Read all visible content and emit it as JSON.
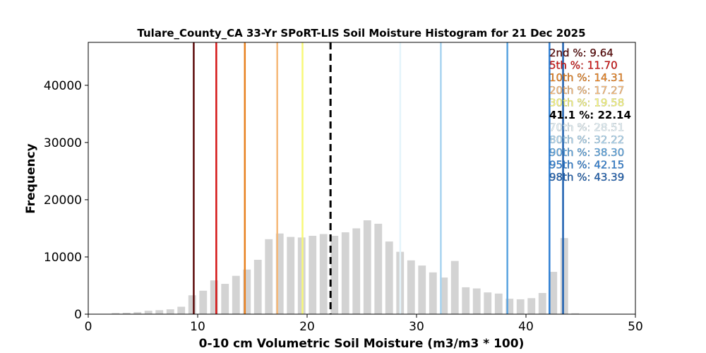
{
  "chart_data": {
    "type": "bar",
    "title": "Tulare_County_CA 33-Yr SPoRT-LIS Soil Moisture Histogram for 21 Dec 2025",
    "xlabel": "0-10 cm Volumetric Soil Moisture (m3/m3 * 100)",
    "ylabel": "Frequency",
    "xlim": [
      0,
      50
    ],
    "ylim": [
      0,
      47500
    ],
    "xticks": [
      "0",
      "10",
      "20",
      "30",
      "40",
      "50"
    ],
    "xtick_values": [
      0,
      10,
      20,
      30,
      40,
      50
    ],
    "yticks": [
      "0",
      "10000",
      "20000",
      "30000",
      "40000"
    ],
    "ytick_values": [
      0,
      10000,
      20000,
      30000,
      40000
    ],
    "grid": false,
    "bar_color": "#d3d3d3",
    "bars": {
      "x": [
        2.5,
        3.5,
        4.5,
        5.5,
        6.5,
        7.5,
        8.5,
        9.5,
        10.5,
        11.5,
        12.5,
        13.5,
        14.5,
        15.5,
        16.5,
        17.5,
        18.5,
        19.5,
        20.5,
        21.5,
        22.5,
        23.5,
        24.5,
        25.5,
        26.5,
        27.5,
        28.5,
        29.5,
        30.5,
        31.5,
        32.5,
        33.5,
        34.5,
        35.5,
        36.5,
        37.5,
        38.5,
        39.5,
        40.5,
        41.5,
        42.5,
        43.5,
        44.5
      ],
      "values": [
        200,
        250,
        350,
        600,
        700,
        850,
        1300,
        3300,
        4100,
        5900,
        5300,
        6700,
        7800,
        9500,
        13100,
        14100,
        13500,
        13400,
        13700,
        14000,
        13700,
        14300,
        15000,
        16400,
        15800,
        12700,
        10900,
        9400,
        8500,
        7300,
        6400,
        9300,
        4700,
        4500,
        3800,
        3600,
        2700,
        2600,
        2800,
        3700,
        7400,
        13300,
        150
      ]
    },
    "percentiles": [
      {
        "label": "2nd %: 9.64",
        "value": 9.64,
        "color": "#5c0a0a",
        "dashed": false
      },
      {
        "label": "5th %: 11.70",
        "value": 11.7,
        "color": "#d41414",
        "dashed": false
      },
      {
        "label": "10th %: 14.31",
        "value": 14.31,
        "color": "#e8801e",
        "dashed": false
      },
      {
        "label": "20th %: 17.27",
        "value": 17.27,
        "color": "#f5b878",
        "dashed": false
      },
      {
        "label": "30th %: 19.58",
        "value": 19.58,
        "color": "#f8f878",
        "dashed": false
      },
      {
        "label": "41.1 %: 22.14",
        "value": 22.14,
        "color": "#000000",
        "dashed": true
      },
      {
        "label": "70th %: 28.51",
        "value": 28.51,
        "color": "#e4f4fb",
        "dashed": false
      },
      {
        "label": "80th %: 32.22",
        "value": 32.22,
        "color": "#a8d4f0",
        "dashed": false
      },
      {
        "label": "90th %: 38.30",
        "value": 38.3,
        "color": "#5aa4e0",
        "dashed": false
      },
      {
        "label": "95th %: 42.15",
        "value": 42.15,
        "color": "#2e7fd4",
        "dashed": false
      },
      {
        "label": "98th %: 43.39",
        "value": 43.39,
        "color": "#1c5fb0",
        "dashed": false
      }
    ]
  }
}
